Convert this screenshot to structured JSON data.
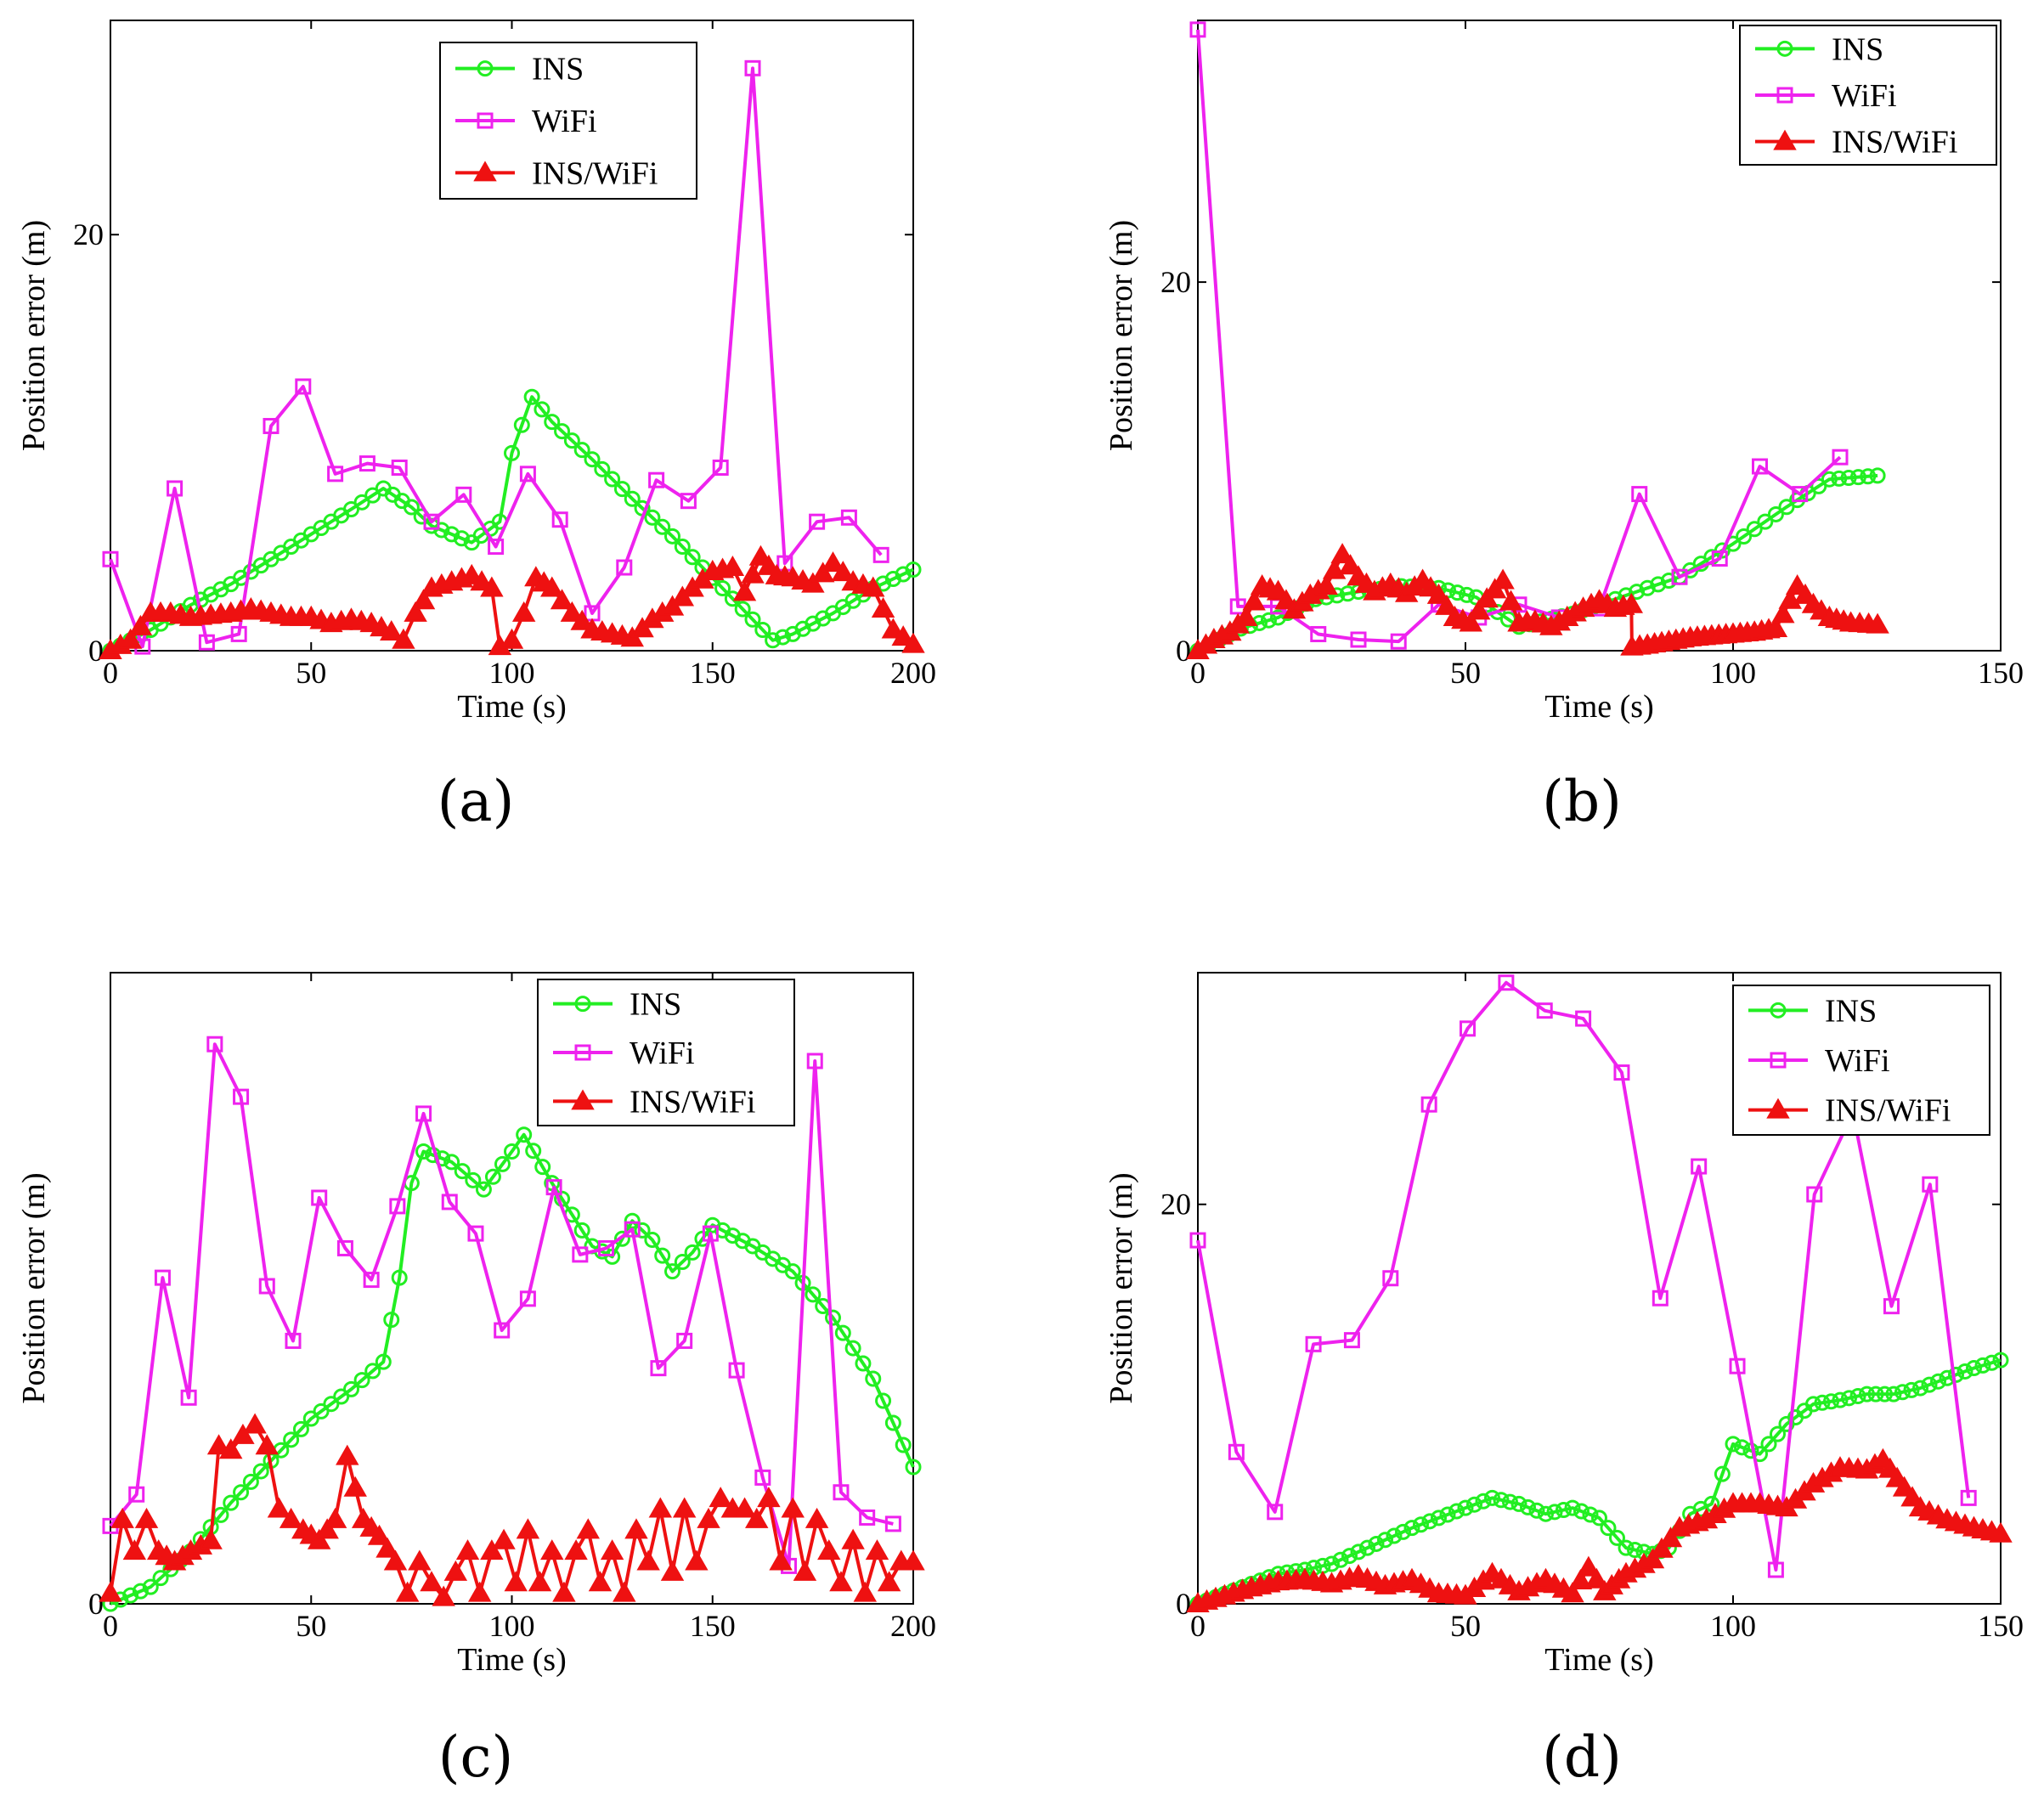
{
  "figure": {
    "captions": [
      "(a)",
      "(b)",
      "(c)",
      "(d)"
    ],
    "colors": {
      "ins": "#22ee22",
      "wifi": "#ee22ee",
      "fused": "#ee1111",
      "axis": "#000000"
    }
  },
  "chart_data": [
    {
      "type": "line",
      "panel": "a",
      "xlabel": "Time (s)",
      "ylabel": "Position error (m)",
      "xlim": [
        0,
        200
      ],
      "ylim": [
        0,
        30.3
      ],
      "xticks": [
        0,
        50,
        100,
        150,
        200
      ],
      "yticks": [
        0,
        20
      ],
      "legend": "top-center",
      "series": [
        {
          "name": "INS",
          "marker": "circle",
          "dense": true,
          "x": [
            0,
            10,
            20,
            30,
            40,
            50,
            60,
            68,
            75,
            80,
            90,
            97,
            100,
            105,
            110,
            120,
            130,
            140,
            150,
            160,
            165,
            170,
            180,
            190,
            200
          ],
          "y": [
            0,
            1,
            2.2,
            3.2,
            4.4,
            5.6,
            6.8,
            7.8,
            6.9,
            6.0,
            5.2,
            6.2,
            9.5,
            12.2,
            11.0,
            9.2,
            7.3,
            5.5,
            3.5,
            1.5,
            0.5,
            0.8,
            1.8,
            3.0,
            3.9
          ]
        },
        {
          "name": "WiFi",
          "marker": "square",
          "x": [
            0,
            8,
            16,
            24,
            32,
            40,
            48,
            56,
            64,
            72,
            80,
            88,
            96,
            104,
            112,
            120,
            128,
            136,
            144,
            152,
            160,
            168,
            176,
            184,
            192
          ],
          "y": [
            4.4,
            0.2,
            7.8,
            0.4,
            0.8,
            10.8,
            12.7,
            8.5,
            9.0,
            8.8,
            6.2,
            7.5,
            5.0,
            8.5,
            6.3,
            1.8,
            4.0,
            8.2,
            7.2,
            8.8,
            28.0,
            4.2,
            6.2,
            6.4,
            4.6
          ]
        },
        {
          "name": "INS/WiFi",
          "marker": "triangle",
          "dense": true,
          "x": [
            0,
            5,
            10,
            15,
            20,
            25,
            30,
            35,
            40,
            45,
            50,
            55,
            60,
            65,
            70,
            73,
            76,
            80,
            85,
            90,
            95,
            97,
            100,
            103,
            106,
            110,
            115,
            120,
            125,
            130,
            135,
            140,
            145,
            150,
            155,
            158,
            162,
            166,
            170,
            175,
            180,
            185,
            190,
            195,
            200
          ],
          "y": [
            0,
            0.5,
            1.8,
            1.8,
            1.6,
            1.7,
            1.8,
            2.0,
            1.8,
            1.6,
            1.6,
            1.3,
            1.5,
            1.3,
            0.9,
            0.5,
            1.8,
            3.0,
            3.3,
            3.6,
            3.0,
            0.2,
            0.5,
            1.8,
            3.5,
            3.0,
            1.8,
            1.0,
            0.8,
            0.6,
            1.5,
            2.1,
            3.0,
            3.8,
            4.0,
            2.8,
            4.5,
            3.6,
            3.5,
            3.2,
            4.2,
            3.3,
            3.0,
            1.0,
            0.3
          ]
        }
      ]
    },
    {
      "type": "line",
      "panel": "b",
      "xlabel": "Time (s)",
      "ylabel": "Position error (m)",
      "xlim": [
        0,
        150
      ],
      "ylim": [
        0,
        34.2
      ],
      "xticks": [
        0,
        50,
        100,
        150
      ],
      "yticks": [
        0,
        20
      ],
      "legend": "top-right",
      "series": [
        {
          "name": "INS",
          "marker": "circle",
          "dense": true,
          "x": [
            0,
            8,
            15,
            22,
            30,
            38,
            45,
            52,
            60,
            70,
            80,
            90,
            100,
            110,
            118,
            127
          ],
          "y": [
            0,
            1.2,
            1.8,
            2.8,
            3.2,
            3.5,
            3.4,
            2.9,
            1.3,
            2.0,
            3.0,
            4.0,
            5.8,
            7.8,
            9.3,
            9.5
          ]
        },
        {
          "name": "WiFi",
          "marker": "square",
          "x": [
            0,
            7.5,
            15,
            22.5,
            30,
            37.5,
            45,
            52.5,
            60,
            67.5,
            75,
            82.5,
            90,
            97.5,
            105,
            112.5,
            120
          ],
          "y": [
            33.7,
            2.4,
            2.4,
            0.9,
            0.6,
            0.5,
            2.5,
            1.8,
            2.5,
            1.8,
            2.3,
            8.5,
            4.0,
            5.0,
            10.0,
            8.5,
            10.5
          ]
        },
        {
          "name": "INS/WiFi",
          "marker": "triangle",
          "dense": true,
          "x": [
            0,
            3,
            6,
            9,
            12,
            15,
            18,
            21,
            24,
            27,
            30,
            33,
            36,
            39,
            42,
            45,
            48,
            51,
            54,
            57,
            60,
            63,
            66,
            69,
            72,
            75,
            78,
            81,
            81.1,
            84,
            88,
            92,
            96,
            100,
            104,
            108,
            112,
            115,
            118,
            122,
            127
          ],
          "y": [
            0,
            0.6,
            1.0,
            1.8,
            3.5,
            3.2,
            2.2,
            3.0,
            3.5,
            5.2,
            4.0,
            3.2,
            3.6,
            3.1,
            3.8,
            3.0,
            1.8,
            1.5,
            2.8,
            3.8,
            1.5,
            1.6,
            1.3,
            1.8,
            2.3,
            2.7,
            2.3,
            2.5,
            0.2,
            0.3,
            0.5,
            0.7,
            0.8,
            0.9,
            1.0,
            1.2,
            3.5,
            2.5,
            1.8,
            1.5,
            1.4
          ]
        }
      ]
    },
    {
      "type": "line",
      "panel": "c",
      "xlabel": "Time (s)",
      "ylabel": "Position error (m)",
      "xlim": [
        0,
        200
      ],
      "ylim": [
        0,
        30
      ],
      "xticks": [
        0,
        50,
        100,
        150,
        200
      ],
      "yticks": [
        0
      ],
      "legend": "top-right",
      "series": [
        {
          "name": "INS",
          "marker": "circle",
          "dense": true,
          "x": [
            0,
            10,
            20,
            30,
            40,
            50,
            60,
            68,
            72,
            75,
            78,
            85,
            93,
            100,
            103,
            110,
            115,
            120,
            125,
            130,
            135,
            140,
            145,
            150,
            160,
            170,
            180,
            190,
            200
          ],
          "y": [
            0,
            0.8,
            2.5,
            4.8,
            6.8,
            8.8,
            10.2,
            11.5,
            15.5,
            20.0,
            21.5,
            21.0,
            19.7,
            21.5,
            22.3,
            20.0,
            18.5,
            17.0,
            16.5,
            18.2,
            17.3,
            15.8,
            16.7,
            18.0,
            17.0,
            15.8,
            13.6,
            10.7,
            6.5
          ]
        },
        {
          "name": "WiFi",
          "marker": "square",
          "x": [
            0,
            6.5,
            13,
            19.5,
            26,
            32.5,
            39,
            45.5,
            52,
            58.5,
            65,
            71.5,
            78,
            84.5,
            91,
            97.5,
            104,
            110.5,
            117,
            123.5,
            130,
            136.5,
            143,
            149.5,
            156,
            162.5,
            169,
            175.5,
            182,
            188.5,
            195
          ],
          "y": [
            3.7,
            5.2,
            15.5,
            9.8,
            26.6,
            24.1,
            15.1,
            12.5,
            19.3,
            16.9,
            15.4,
            18.9,
            23.3,
            19.1,
            17.6,
            13.0,
            14.5,
            19.8,
            16.6,
            16.9,
            17.8,
            11.2,
            12.5,
            17.6,
            11.1,
            6.0,
            1.8,
            25.8,
            5.3,
            4.1,
            3.8
          ]
        },
        {
          "name": "INS/WiFi",
          "marker": "triangle",
          "dense": true,
          "x": [
            0,
            3,
            6,
            9,
            12,
            16,
            20,
            25,
            27,
            30,
            33,
            36,
            39,
            42,
            45,
            48,
            52,
            56,
            59,
            63,
            67,
            71,
            74,
            77,
            80,
            83,
            86,
            89,
            92,
            95,
            98,
            101,
            104,
            107,
            110,
            113,
            116,
            119,
            122,
            125,
            128,
            131,
            134,
            137,
            140,
            143,
            146,
            149,
            152,
            155,
            158,
            161,
            164,
            167,
            170,
            173,
            176,
            179,
            182,
            185,
            188,
            191,
            194,
            197,
            200
          ],
          "y": [
            0.5,
            4.0,
            2.5,
            4.0,
            2.5,
            2.0,
            2.5,
            3.0,
            7.5,
            7.3,
            8.0,
            8.5,
            7.5,
            4.5,
            4.0,
            3.5,
            3.0,
            4.0,
            7.0,
            4.0,
            3.2,
            2.0,
            0.5,
            2.0,
            1.0,
            0.3,
            1.5,
            2.5,
            0.5,
            2.5,
            3.0,
            1.0,
            3.5,
            1.0,
            2.5,
            0.5,
            2.5,
            3.5,
            1.0,
            2.5,
            0.5,
            3.5,
            2.0,
            4.5,
            1.5,
            4.5,
            2.0,
            4.0,
            5.0,
            4.5,
            4.5,
            4.0,
            5.0,
            2.0,
            4.5,
            1.5,
            4.0,
            2.5,
            1.0,
            3.0,
            0.5,
            2.5,
            1.0,
            2.0,
            2.0
          ]
        }
      ]
    },
    {
      "type": "line",
      "panel": "d",
      "xlabel": "Time (s)",
      "ylabel": "Position error (m)",
      "xlim": [
        0,
        150
      ],
      "ylim": [
        0,
        31.6
      ],
      "xticks": [
        0,
        50,
        100,
        150
      ],
      "yticks": [
        0,
        20
      ],
      "legend": "top-right",
      "series": [
        {
          "name": "INS",
          "marker": "circle",
          "dense": true,
          "x": [
            0,
            5,
            10,
            15,
            20,
            25,
            30,
            35,
            40,
            45,
            50,
            55,
            60,
            65,
            70,
            75,
            80,
            85,
            88,
            92,
            96,
            100,
            105,
            110,
            115,
            120,
            125,
            130,
            135,
            140,
            145,
            150
          ],
          "y": [
            0,
            0.5,
            1.0,
            1.5,
            1.7,
            2.0,
            2.6,
            3.2,
            3.8,
            4.3,
            4.8,
            5.3,
            5.0,
            4.5,
            4.8,
            4.3,
            2.8,
            2.5,
            2.8,
            4.5,
            5.0,
            8.0,
            7.5,
            9.0,
            10.0,
            10.2,
            10.5,
            10.5,
            10.8,
            11.3,
            11.8,
            12.2
          ]
        },
        {
          "name": "WiFi",
          "marker": "square",
          "x": [
            0,
            7.2,
            14.4,
            21.6,
            28.8,
            36,
            43.2,
            50.4,
            57.6,
            64.8,
            72,
            79.2,
            86.4,
            93.6,
            100.8,
            108,
            115.2,
            122.4,
            129.6,
            136.8,
            144
          ],
          "y": [
            18.2,
            7.6,
            4.6,
            13.0,
            13.2,
            16.3,
            25.0,
            28.8,
            31.1,
            29.7,
            29.3,
            26.6,
            15.3,
            21.9,
            11.9,
            1.7,
            20.5,
            24.6,
            14.9,
            21.0,
            5.3
          ]
        },
        {
          "name": "INS/WiFi",
          "marker": "triangle",
          "dense": true,
          "x": [
            0,
            5,
            10,
            15,
            20,
            25,
            30,
            35,
            40,
            45,
            50,
            55,
            60,
            65,
            70,
            73,
            76,
            80,
            85,
            90,
            95,
            100,
            105,
            110,
            115,
            120,
            125,
            128,
            132,
            135,
            140,
            145,
            150
          ],
          "y": [
            0,
            0.4,
            0.8,
            1.1,
            1.2,
            1.0,
            1.4,
            0.9,
            1.2,
            0.5,
            0.4,
            1.5,
            0.6,
            1.2,
            0.5,
            1.8,
            0.6,
            1.5,
            2.2,
            3.8,
            4.2,
            5.0,
            5.0,
            4.8,
            6.0,
            6.8,
            6.7,
            7.2,
            5.8,
            4.8,
            4.2,
            3.8,
            3.5
          ]
        }
      ]
    }
  ]
}
